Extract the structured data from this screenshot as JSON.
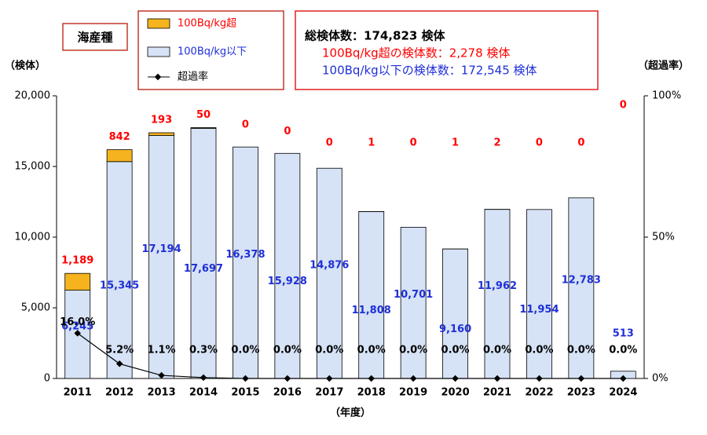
{
  "chart_data": {
    "type": "stacked_bar_line",
    "label": "海産種",
    "notes": [
      "総検体数：174,823 検体",
      "100Bq/kg超の検体数：2,278 検体",
      "100Bq/kg以下の検体数：172,545 検体"
    ],
    "y_label": "（検体）",
    "y2_label": "（超過率）",
    "x_label": "（年度）",
    "categories": [
      "2011",
      "2012",
      "2013",
      "2014",
      "2015",
      "2016",
      "2017",
      "2018",
      "2019",
      "2020",
      "2021",
      "2022",
      "2023",
      "2024"
    ],
    "series": [
      {
        "name": "100Bq/kg以下",
        "color": "#d6e2f5",
        "label_color": "#1f2fd8",
        "values": [
          6245,
          15345,
          17194,
          17697,
          16378,
          15928,
          14876,
          11808,
          10701,
          9160,
          11962,
          11954,
          12783,
          513
        ],
        "value_labels": [
          "6,245",
          "15,345",
          "17,194",
          "17,697",
          "16,378",
          "15,928",
          "14,876",
          "11,808",
          "10,701",
          "9,160",
          "11,962",
          "11,954",
          "12,783",
          "513"
        ]
      },
      {
        "name": "100Bq/kg超",
        "color": "#f5b41e",
        "label_color": "#ff0000",
        "values": [
          1189,
          842,
          193,
          50,
          0,
          0,
          0,
          1,
          0,
          1,
          2,
          0,
          0,
          0
        ],
        "value_labels": [
          "1,189",
          "842",
          "193",
          "50",
          "0",
          "0",
          "0",
          "1",
          "0",
          "1",
          "2",
          "0",
          "0",
          "0"
        ]
      },
      {
        "name": "超過率",
        "color": "#000000",
        "axis": "y2",
        "values": [
          16.0,
          5.2,
          1.1,
          0.3,
          0.0,
          0.0,
          0.0,
          0.0,
          0.0,
          0.0,
          0.0,
          0.0,
          0.0,
          0.0
        ],
        "value_labels": [
          "16.0%",
          "5.2%",
          "1.1%",
          "0.3%",
          "0.0%",
          "0.0%",
          "0.0%",
          "0.0%",
          "0.0%",
          "0.0%",
          "0.0%",
          "0.0%",
          "0.0%",
          "0.0%"
        ]
      }
    ],
    "ylim": [
      0,
      20000
    ],
    "yticks": [
      0,
      {
        "value": 5000,
        "label": "5,000"
      },
      {
        "value": 10000,
        "label": "10,000"
      },
      {
        "value": 15000,
        "label": "15,000"
      },
      {
        "value": 20000,
        "label": "20,000"
      }
    ],
    "y2lim": [
      0,
      100
    ],
    "y2ticks": [
      {
        "value": 0,
        "label": "0%"
      },
      {
        "value": 50,
        "label": "50%"
      },
      {
        "value": 100,
        "label": "100%"
      }
    ]
  }
}
